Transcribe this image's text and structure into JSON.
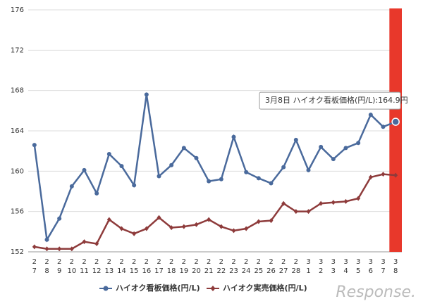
{
  "chart_data": {
    "type": "line",
    "categories": [
      [
        "2",
        "7"
      ],
      [
        "2",
        "8"
      ],
      [
        "2",
        "9"
      ],
      [
        "2",
        "10"
      ],
      [
        "2",
        "11"
      ],
      [
        "2",
        "12"
      ],
      [
        "2",
        "13"
      ],
      [
        "2",
        "14"
      ],
      [
        "2",
        "15"
      ],
      [
        "2",
        "16"
      ],
      [
        "2",
        "17"
      ],
      [
        "2",
        "18"
      ],
      [
        "2",
        "19"
      ],
      [
        "2",
        "20"
      ],
      [
        "2",
        "21"
      ],
      [
        "2",
        "22"
      ],
      [
        "2",
        "23"
      ],
      [
        "2",
        "24"
      ],
      [
        "2",
        "25"
      ],
      [
        "2",
        "26"
      ],
      [
        "2",
        "27"
      ],
      [
        "2",
        "28"
      ],
      [
        "3",
        "1"
      ],
      [
        "3",
        "2"
      ],
      [
        "3",
        "3"
      ],
      [
        "3",
        "4"
      ],
      [
        "3",
        "5"
      ],
      [
        "3",
        "6"
      ],
      [
        "3",
        "7"
      ],
      [
        "3",
        "8"
      ]
    ],
    "series": [
      {
        "name": "ハイオク看板価格(円/L)",
        "color": "#4a6a9c",
        "marker": "circle",
        "values": [
          162.6,
          153.2,
          155.3,
          158.5,
          160.1,
          157.8,
          161.7,
          160.5,
          158.6,
          167.6,
          159.5,
          160.6,
          162.3,
          161.3,
          159.0,
          159.2,
          163.4,
          159.9,
          159.3,
          158.8,
          160.4,
          163.1,
          160.1,
          162.4,
          161.2,
          162.3,
          162.8,
          165.6,
          164.4,
          164.9
        ]
      },
      {
        "name": "ハイオク実売価格(円/L)",
        "color": "#8e3b3b",
        "marker": "diamond",
        "values": [
          152.5,
          152.3,
          152.3,
          152.3,
          153.0,
          152.8,
          155.2,
          154.3,
          153.8,
          154.3,
          155.4,
          154.4,
          154.5,
          154.7,
          155.2,
          154.5,
          154.1,
          154.3,
          155.0,
          155.1,
          156.8,
          156.0,
          156.0,
          156.8,
          156.9,
          157.0,
          157.3,
          159.4,
          159.7,
          159.6
        ]
      }
    ],
    "ylim": [
      152,
      176
    ],
    "yticks": [
      152,
      156,
      160,
      164,
      168,
      172,
      176
    ],
    "grid": true,
    "tooltip": "3月8日 ハイオク看板価格(円/L):164.9円",
    "watermark": "Response."
  }
}
